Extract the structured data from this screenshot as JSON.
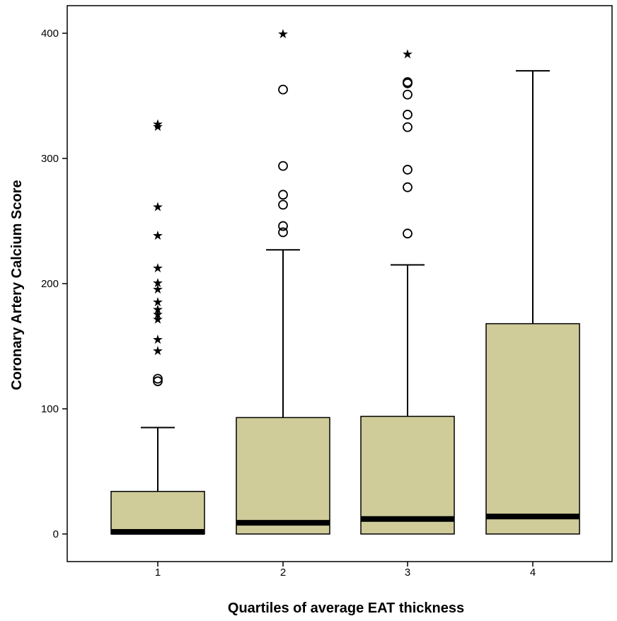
{
  "chart_data": {
    "type": "boxplot",
    "xlabel": "Quartiles of average EAT thickness",
    "ylabel": "Coronary Artery Calcium Score",
    "ylim": [
      -22,
      422
    ],
    "yticks": [
      0,
      100,
      200,
      300,
      400
    ],
    "categories": [
      "1",
      "2",
      "3",
      "4"
    ],
    "box_color": "#d0cc9a",
    "boxes": [
      {
        "category": "1",
        "whisker_low": 0,
        "q1": 0,
        "median": 0,
        "q3": 34,
        "whisker_high": 85,
        "outliers": [
          122,
          124
        ],
        "extremes": [
          147,
          156,
          172,
          176,
          180,
          186,
          196,
          201,
          213,
          239,
          262,
          326,
          328
        ]
      },
      {
        "category": "2",
        "whisker_low": 0,
        "q1": 0,
        "median": 9,
        "q3": 93,
        "whisker_high": 227,
        "outliers": [
          241,
          246,
          263,
          271,
          294,
          355
        ],
        "extremes": [
          400
        ]
      },
      {
        "category": "3",
        "whisker_low": 0,
        "q1": 0,
        "median": 12,
        "q3": 94,
        "whisker_high": 215,
        "outliers": [
          240,
          277,
          291,
          325,
          335,
          351,
          360,
          361
        ],
        "extremes": [
          384
        ]
      },
      {
        "category": "4",
        "whisker_low": 0,
        "q1": 0,
        "median": 14,
        "q3": 168,
        "whisker_high": 370,
        "outliers": [],
        "extremes": []
      }
    ]
  }
}
